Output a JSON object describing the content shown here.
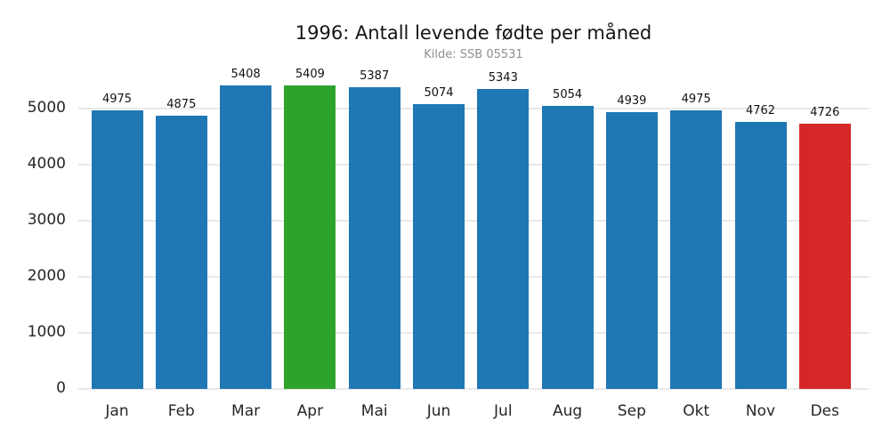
{
  "chart_data": {
    "type": "bar",
    "title": "1996: Antall levende fødte per måned",
    "subtitle": "Kilde: SSB 05531",
    "xlabel": "",
    "ylabel": "",
    "categories": [
      "Jan",
      "Feb",
      "Mar",
      "Apr",
      "Mai",
      "Jun",
      "Jul",
      "Aug",
      "Sep",
      "Okt",
      "Nov",
      "Des"
    ],
    "values": [
      4975,
      4875,
      5408,
      5409,
      5387,
      5074,
      5343,
      5054,
      4939,
      4975,
      4762,
      4726
    ],
    "bar_colors": [
      "#1f77b4",
      "#1f77b4",
      "#1f77b4",
      "#2ea32c",
      "#1f77b4",
      "#1f77b4",
      "#1f77b4",
      "#1f77b4",
      "#1f77b4",
      "#1f77b4",
      "#1f77b4",
      "#d62728"
    ],
    "highlight": {
      "max_month": "Apr",
      "max_color": "#2ea32c",
      "min_month": "Des",
      "min_color": "#d62728",
      "default_color": "#1f77b4"
    },
    "yticks": [
      0,
      1000,
      2000,
      3000,
      4000,
      5000
    ],
    "ylim": [
      0,
      5556
    ],
    "grid": true,
    "gridline_color": "#e9e9e9",
    "background_color": "#ffffff",
    "value_labels_shown": true,
    "legend": "none"
  }
}
